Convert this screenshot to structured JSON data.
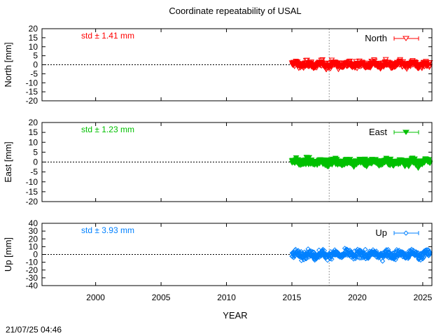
{
  "title": "Coordinate repeatability of USAL",
  "timestamp": "21/07/25 04:46",
  "chart_data": {
    "type": "scatter",
    "title": "Coordinate repeatability of USAL",
    "xlabel": "YEAR",
    "xlim": [
      1995.9,
      2025.7
    ],
    "x_ticks": [
      2000,
      2005,
      2010,
      2015,
      2020,
      2025
    ],
    "data_start_year": 2015.0,
    "data_end_year": 2025.55,
    "vertical_marker_year": 2017.85,
    "panels": [
      {
        "name": "North",
        "ylabel": "North [mm]",
        "ylim": [
          -20,
          20
        ],
        "y_ticks": [
          -20,
          -15,
          -10,
          -5,
          0,
          5,
          10,
          15,
          20
        ],
        "std_label": "std ± 1.41 mm",
        "std_mm": 1.41,
        "color": "#ff0000",
        "marker": "triangle-down-open",
        "legend": "top-right"
      },
      {
        "name": "East",
        "ylabel": "East [mm]",
        "ylim": [
          -20,
          20
        ],
        "y_ticks": [
          -20,
          -15,
          -10,
          -5,
          0,
          5,
          10,
          15,
          20
        ],
        "std_label": "std ± 1.23 mm",
        "std_mm": 1.23,
        "color": "#00c000",
        "marker": "triangle-down-filled",
        "legend": "top-right"
      },
      {
        "name": "Up",
        "ylabel": "Up [mm]",
        "ylim": [
          -40,
          40
        ],
        "y_ticks": [
          -40,
          -30,
          -20,
          -10,
          0,
          10,
          20,
          30,
          40
        ],
        "std_label": "std ± 3.93 mm",
        "std_mm": 3.93,
        "color": "#0080ff",
        "marker": "diamond-open",
        "legend": "top-right"
      }
    ]
  }
}
